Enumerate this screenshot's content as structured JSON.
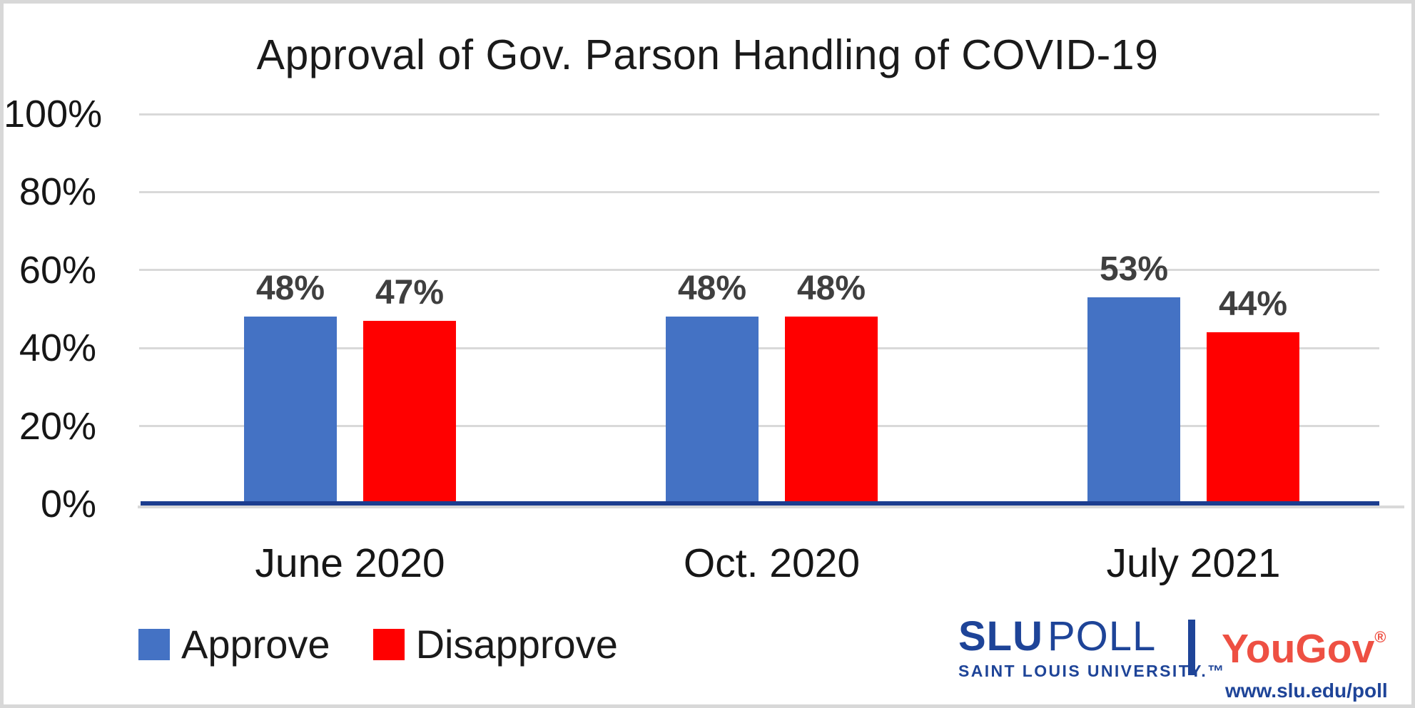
{
  "title": "Approval of Gov. Parson Handling of COVID-19",
  "chart_data": {
    "type": "bar",
    "title": "Approval of Gov. Parson Handling of COVID-19",
    "categories": [
      "June 2020",
      "Oct. 2020",
      "July 2021"
    ],
    "series": [
      {
        "name": "Approve",
        "color": "#4472C4",
        "values": [
          48,
          48,
          53
        ],
        "labels": [
          "48%",
          "48%",
          "53%"
        ]
      },
      {
        "name": "Disapprove",
        "color": "#FF0000",
        "values": [
          47,
          48,
          44
        ],
        "labels": [
          "47%",
          "48%",
          "44%"
        ]
      }
    ],
    "xlabel": "",
    "ylabel": "",
    "ylim": [
      0,
      100
    ],
    "yticks": [
      "100%",
      "80%",
      "60%",
      "40%",
      "20%",
      "0%"
    ],
    "grid": true,
    "legend_position": "bottom-left",
    "data_labels_shown": true
  },
  "legend": {
    "items": [
      {
        "label": "Approve",
        "color": "#4472C4"
      },
      {
        "label": "Disapprove",
        "color": "#FF0000"
      }
    ]
  },
  "branding": {
    "slu": "SLU",
    "poll": "POLL",
    "slu_sub": "SAINT LOUIS UNIVERSITY.™",
    "yougov": "YouGov",
    "yougov_reg": "®",
    "url": "www.slu.edu/poll",
    "slu_blue": "#1E4498",
    "yougov_red": "#EE5043"
  },
  "style": {
    "axis_line_color": "#1C3D8F",
    "gridline_color": "#D9D9D9",
    "data_label_color": "#3F3F3F",
    "text_color": "#1A1A1A",
    "border_color": "#D8D8D8"
  }
}
